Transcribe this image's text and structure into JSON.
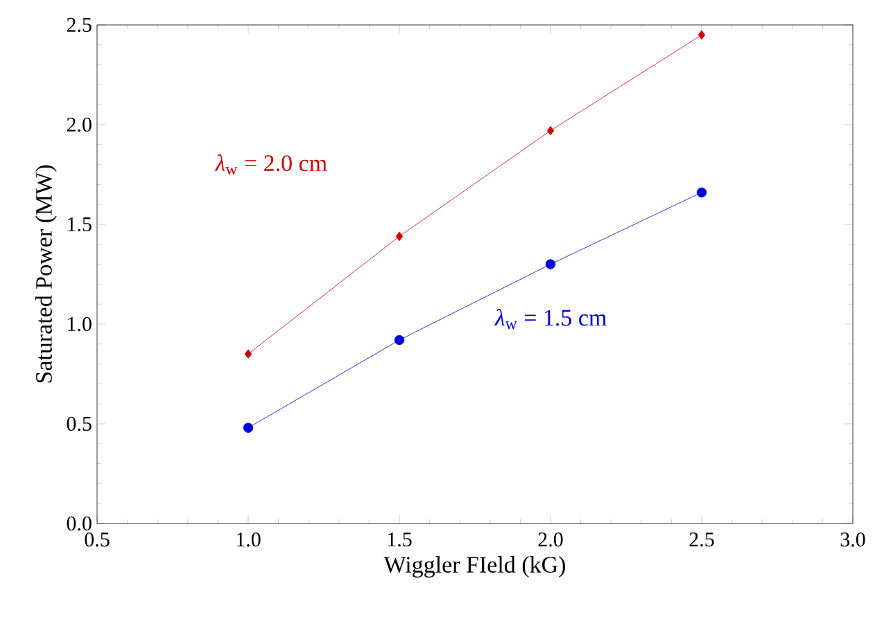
{
  "chart_data": {
    "type": "line",
    "xlabel": "Wiggler FIeld (kG)",
    "ylabel": "Saturated Power (MW)",
    "x": [
      1.0,
      1.5,
      2.0,
      2.5
    ],
    "series": [
      {
        "name": "*λ*$_{w}$ = 2.0 cm",
        "color": "#cc0000",
        "marker": "diamond",
        "values": [
          0.85,
          1.44,
          1.97,
          2.45
        ]
      },
      {
        "name": "*λ*$_{w}$ = 1.5 cm",
        "color": "#0000dd",
        "marker": "circle",
        "values": [
          0.48,
          0.92,
          1.3,
          1.66
        ]
      }
    ],
    "xlim": [
      0.5,
      3.0
    ],
    "ylim": [
      0,
      2.5
    ],
    "xticks": [
      {
        "value": 0.5,
        "label": "0.5"
      },
      {
        "value": 1,
        "label": "1.0"
      },
      {
        "value": 1.5,
        "label": "1.5"
      },
      {
        "value": 2,
        "label": "2.0"
      },
      {
        "value": 2.5,
        "label": "2.5"
      },
      {
        "value": 3,
        "label": "3.0"
      }
    ],
    "yticks": [
      {
        "value": 0,
        "label": "0.0"
      },
      {
        "value": 0.5,
        "label": "0.5"
      },
      {
        "value": 1,
        "label": "1.0"
      },
      {
        "value": 1.5,
        "label": "1.5"
      },
      {
        "value": 2,
        "label": "2.0"
      },
      {
        "value": 2.5,
        "label": "2.5"
      }
    ],
    "line_style": "solid"
  }
}
